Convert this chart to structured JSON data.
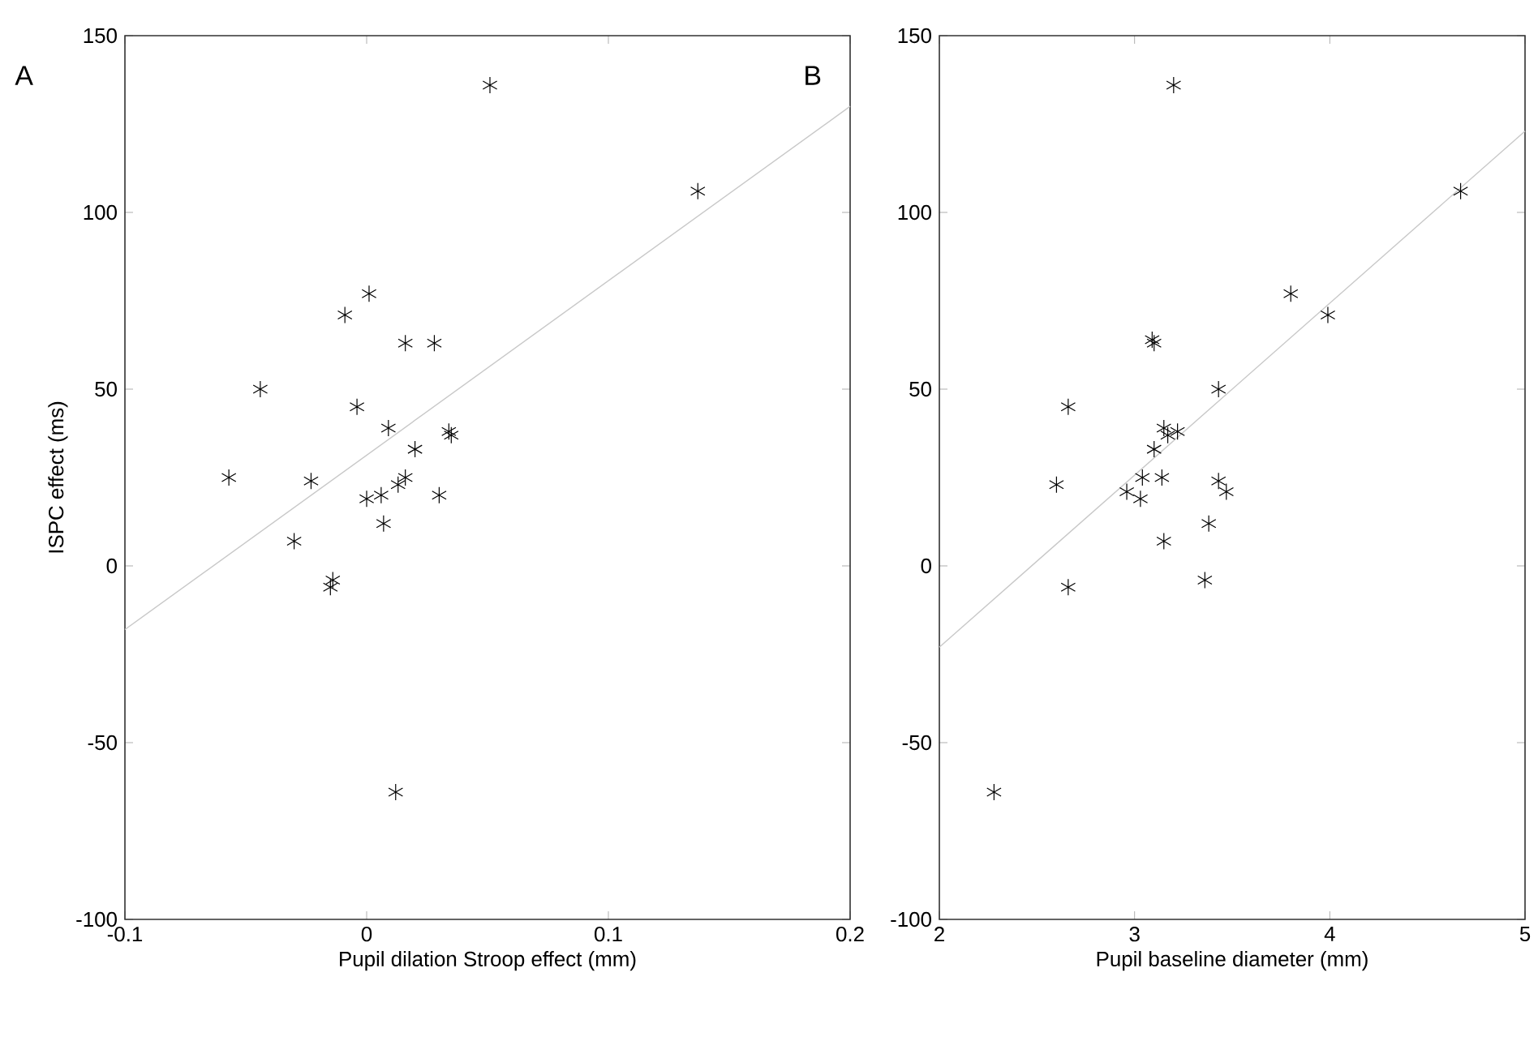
{
  "chart_data": [
    {
      "type": "scatter",
      "annotations": [
        "A"
      ],
      "xlabel": "Pupil dilation Stroop effect (mm)",
      "ylabel": "ISPC effect (ms)",
      "xlim": [
        -0.1,
        0.2
      ],
      "ylim": [
        -100,
        150
      ],
      "xticks": [
        -0.1,
        0,
        0.1,
        0.2
      ],
      "yticks": [
        -100,
        -50,
        0,
        50,
        100,
        150
      ],
      "grid": false,
      "series": [
        {
          "type": "scatter",
          "marker": "cross",
          "color": "#000000",
          "x": [
            0.051,
            0.137,
            0.001,
            -0.009,
            0.016,
            0.028,
            -0.044,
            -0.004,
            0.009,
            0.034,
            0.035,
            0.02,
            -0.057,
            0.016,
            -0.023,
            0.013,
            0.006,
            0.03,
            0.0,
            0.007,
            -0.03,
            -0.014,
            -0.015,
            0.012
          ],
          "values": [
            136,
            106,
            77,
            71,
            63,
            63,
            50,
            45,
            39,
            38,
            37,
            33,
            25,
            25,
            24,
            23,
            20,
            20,
            19,
            12,
            7,
            -4,
            -6,
            -64
          ]
        },
        {
          "type": "line",
          "marker": "none",
          "color": "#c8c8c8",
          "x": [
            -0.1,
            0.2
          ],
          "values": [
            -18,
            130
          ]
        }
      ]
    },
    {
      "type": "scatter",
      "annotations": [
        "B"
      ],
      "xlabel": "Pupil baseline diameter (mm)",
      "xlim": [
        2,
        5
      ],
      "ylim": [
        -100,
        150
      ],
      "xticks": [
        2,
        3,
        4,
        5
      ],
      "yticks": [
        -100,
        -50,
        0,
        50,
        100,
        150
      ],
      "grid": false,
      "series": [
        {
          "type": "scatter",
          "marker": "cross",
          "color": "#000000",
          "x": [
            3.2,
            4.67,
            3.8,
            3.99,
            3.09,
            3.1,
            2.66,
            3.43,
            3.15,
            3.22,
            3.17,
            3.1,
            2.6,
            3.04,
            3.14,
            3.43,
            2.96,
            3.47,
            3.03,
            3.15,
            3.38,
            2.66,
            3.36,
            2.28
          ],
          "values": [
            136,
            106,
            77,
            71,
            64,
            63,
            45,
            50,
            39,
            38,
            37,
            33,
            23,
            25,
            25,
            24,
            21,
            21,
            19,
            7,
            12,
            -6,
            -4,
            -64
          ]
        },
        {
          "type": "line",
          "marker": "none",
          "color": "#c8c8c8",
          "x": [
            2,
            5
          ],
          "values": [
            -23,
            123
          ]
        }
      ]
    }
  ]
}
